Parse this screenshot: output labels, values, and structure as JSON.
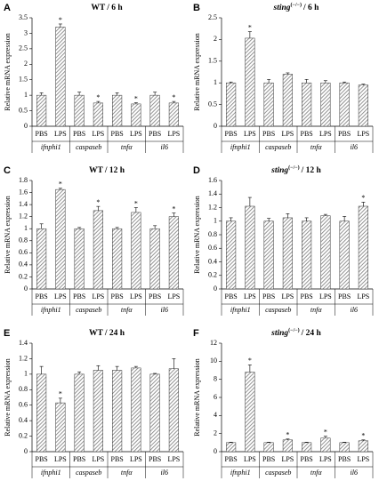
{
  "chart_data": [
    {
      "type": "bar",
      "panel": "A",
      "genotype": "WT",
      "title": "/ 6 h",
      "ylabel": "Relative mRNA expression",
      "categories": [
        "PBS",
        "LPS",
        "PBS",
        "LPS",
        "PBS",
        "LPS",
        "PBS",
        "LPS"
      ],
      "groups": [
        "ifnphi1",
        "caspaseb",
        "tnfα",
        "il6"
      ],
      "values": [
        1.0,
        3.2,
        1.0,
        0.75,
        1.0,
        0.72,
        1.0,
        0.75
      ],
      "errors": [
        0.08,
        0.1,
        0.1,
        0.05,
        0.08,
        0.04,
        0.1,
        0.05
      ],
      "significance": [
        null,
        "*",
        null,
        "*",
        null,
        "*",
        null,
        "*"
      ],
      "color": "#7a7a7a",
      "ylim": [
        0,
        3.5
      ],
      "yticks": [
        0,
        0.5,
        1,
        1.5,
        2,
        2.5,
        3,
        3.5
      ]
    },
    {
      "type": "bar",
      "panel": "B",
      "genotype": "sting",
      "genotype_superscript": "(−/−)",
      "title": "/ 6 h",
      "ylabel": "Relative mRNA expression",
      "categories": [
        "PBS",
        "LPS",
        "PBS",
        "LPS",
        "PBS",
        "LPS",
        "PBS",
        "LPS"
      ],
      "groups": [
        "ifnphi1",
        "caspaseb",
        "tnfα",
        "il6"
      ],
      "values": [
        1.0,
        2.03,
        1.0,
        1.2,
        1.0,
        1.0,
        1.0,
        0.95
      ],
      "errors": [
        0.02,
        0.15,
        0.08,
        0.03,
        0.08,
        0.05,
        0.02,
        0.02
      ],
      "significance": [
        null,
        "*",
        null,
        null,
        null,
        null,
        null,
        null
      ],
      "color": "#7a7a7a",
      "ylim": [
        0,
        2.5
      ],
      "yticks": [
        0,
        0.5,
        1,
        1.5,
        2,
        2.5
      ]
    },
    {
      "type": "bar",
      "panel": "C",
      "genotype": "WT",
      "title": "/ 12 h",
      "ylabel": "Relative mRNA expression",
      "categories": [
        "PBS",
        "LPS",
        "PBS",
        "LPS",
        "PBS",
        "LPS",
        "PBS",
        "LPS"
      ],
      "groups": [
        "ifnphi1",
        "caspaseb",
        "tnfα",
        "il6"
      ],
      "values": [
        1.0,
        1.65,
        1.0,
        1.3,
        1.0,
        1.27,
        1.0,
        1.2
      ],
      "errors": [
        0.08,
        0.02,
        0.02,
        0.07,
        0.02,
        0.08,
        0.05,
        0.06
      ],
      "significance": [
        null,
        "*",
        null,
        "*",
        null,
        "*",
        null,
        "*"
      ],
      "color": "#7a7a7a",
      "ylim": [
        0,
        1.8
      ],
      "yticks": [
        0,
        0.2,
        0.4,
        0.6,
        0.8,
        1,
        1.2,
        1.4,
        1.6,
        1.8
      ]
    },
    {
      "type": "bar",
      "panel": "D",
      "genotype": "sting",
      "genotype_superscript": "(−/−)",
      "title": "/ 12 h",
      "ylabel": "Relative mRNA expression",
      "categories": [
        "PBS",
        "LPS",
        "PBS",
        "LPS",
        "PBS",
        "LPS",
        "PBS",
        "LPS"
      ],
      "groups": [
        "ifnphi1",
        "caspaseb",
        "tnfα",
        "il6"
      ],
      "values": [
        1.0,
        1.22,
        1.0,
        1.05,
        1.0,
        1.08,
        1.0,
        1.22
      ],
      "errors": [
        0.05,
        0.13,
        0.04,
        0.06,
        0.05,
        0.02,
        0.07,
        0.06
      ],
      "significance": [
        null,
        null,
        null,
        null,
        null,
        null,
        null,
        "*"
      ],
      "color": "#7a7a7a",
      "ylim": [
        0,
        1.6
      ],
      "yticks": [
        0,
        0.2,
        0.4,
        0.6,
        0.8,
        1,
        1.2,
        1.4,
        1.6
      ]
    },
    {
      "type": "bar",
      "panel": "E",
      "genotype": "WT",
      "title": "/ 24 h",
      "ylabel": "Relative mRNA expression",
      "categories": [
        "PBS",
        "LPS",
        "PBS",
        "LPS",
        "PBS",
        "LPS",
        "PBS",
        "LPS"
      ],
      "groups": [
        "ifnphi1",
        "caspaseb",
        "tnfα",
        "il6"
      ],
      "values": [
        1.0,
        0.63,
        1.0,
        1.05,
        1.05,
        1.08,
        1.0,
        1.07
      ],
      "errors": [
        0.1,
        0.06,
        0.03,
        0.06,
        0.05,
        0.02,
        0.01,
        0.13
      ],
      "significance": [
        null,
        "*",
        null,
        null,
        null,
        null,
        null,
        null
      ],
      "color": "#7a7a7a",
      "ylim": [
        0,
        1.4
      ],
      "yticks": [
        0,
        0.2,
        0.4,
        0.6,
        0.8,
        1,
        1.2,
        1.4
      ]
    },
    {
      "type": "bar",
      "panel": "F",
      "genotype": "sting",
      "genotype_superscript": "(−/−)",
      "title": "/ 24 h",
      "ylabel": "Relative mRNA expression",
      "categories": [
        "PBS",
        "LPS",
        "PBS",
        "LPS",
        "PBS",
        "LPS",
        "PBS",
        "LPS"
      ],
      "groups": [
        "ifnphi1",
        "caspaseb",
        "tnfα",
        "il6"
      ],
      "values": [
        1.0,
        8.8,
        1.0,
        1.3,
        1.0,
        1.5,
        1.0,
        1.2
      ],
      "errors": [
        0.05,
        0.8,
        0.05,
        0.1,
        0.05,
        0.2,
        0.05,
        0.1
      ],
      "significance": [
        null,
        "*",
        null,
        "*",
        null,
        "*",
        null,
        "*"
      ],
      "color": "#7a7a7a",
      "ylim": [
        0,
        12
      ],
      "yticks": [
        0,
        2,
        4,
        6,
        8,
        10,
        12
      ]
    }
  ]
}
